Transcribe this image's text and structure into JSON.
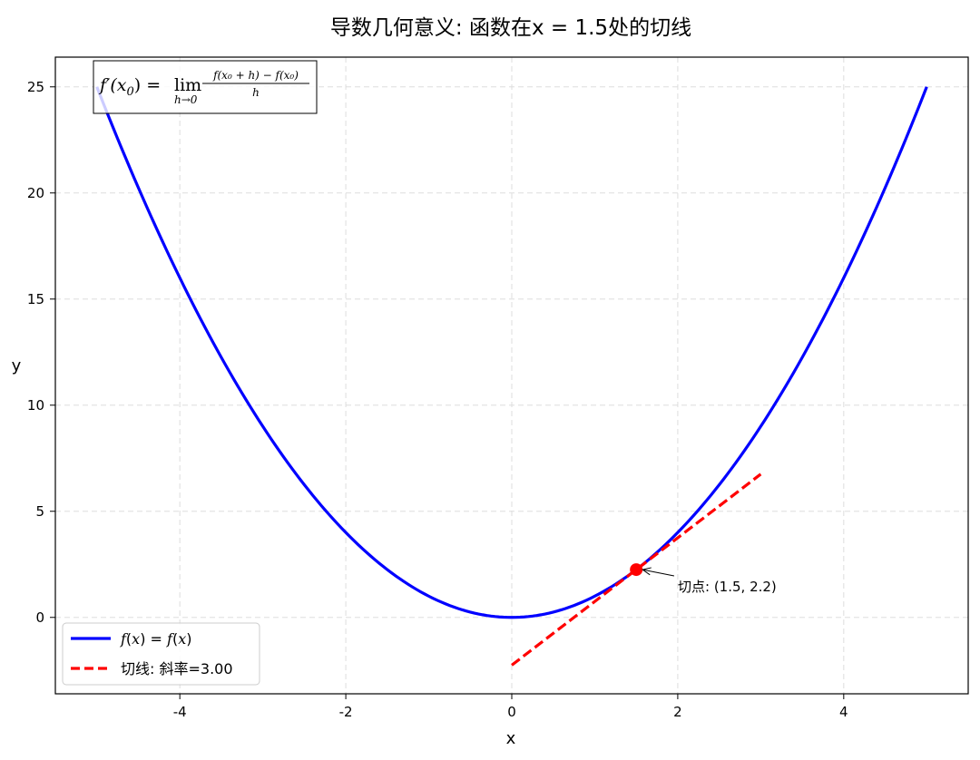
{
  "chart_data": {
    "type": "line",
    "title": "导数几何意义: 函数在x = 1.5处的切线",
    "xlabel": "x",
    "ylabel": "y",
    "xlim": [
      -5.5,
      5.5
    ],
    "ylim": [
      -3.6,
      26.4
    ],
    "xticks": [
      -4,
      -2,
      0,
      2,
      4
    ],
    "xtick_labels": [
      "-4",
      "-2",
      "0",
      "2",
      "4"
    ],
    "yticks": [
      0,
      5,
      10,
      15,
      20,
      25
    ],
    "ytick_labels": [
      "0",
      "5",
      "10",
      "15",
      "20",
      "25"
    ],
    "grid": true,
    "legend_position": "lower-left",
    "series": [
      {
        "name": "f(x) = f(x)",
        "style": "solid",
        "color": "#0000ff",
        "x": [
          -5,
          -4.5,
          -4,
          -3.5,
          -3,
          -2.5,
          -2,
          -1.5,
          -1,
          -0.5,
          0,
          0.5,
          1,
          1.5,
          2,
          2.5,
          3,
          3.5,
          4,
          4.5,
          5
        ],
        "y": [
          25,
          20.25,
          16,
          12.25,
          9,
          6.25,
          4,
          2.25,
          1,
          0.25,
          0,
          0.25,
          1,
          2.25,
          4,
          6.25,
          9,
          12.25,
          16,
          20.25,
          25
        ]
      },
      {
        "name": "切线: 斜率=3.00",
        "style": "dashed",
        "color": "#ff0000",
        "x": [
          0,
          3
        ],
        "y": [
          -2.25,
          6.75
        ]
      }
    ],
    "tangent_point": {
      "x": 1.5,
      "y": 2.25,
      "color": "#ff0000"
    },
    "annotation": {
      "text": "切点: (1.5, 2.2)",
      "x": 1.5,
      "y": 2.25,
      "text_x": 2.0,
      "text_y": 1.4
    },
    "formula_box": {
      "lhs": "f′(x",
      "lhs_sub": "0",
      "lhs_close": ") = ",
      "lim": "lim",
      "lim_sub": "h→0",
      "numerator": "f(x₀ + h) − f(x₀)",
      "denominator": "h"
    },
    "legend_labels": {
      "curve_f": "f",
      "curve_open": "(",
      "curve_x": "x",
      "curve_mid": ") = ",
      "curve_f2": "f",
      "curve_open2": "(",
      "curve_x2": "x",
      "curve_close": ")",
      "tangent": "切线: 斜率=3.00"
    }
  }
}
